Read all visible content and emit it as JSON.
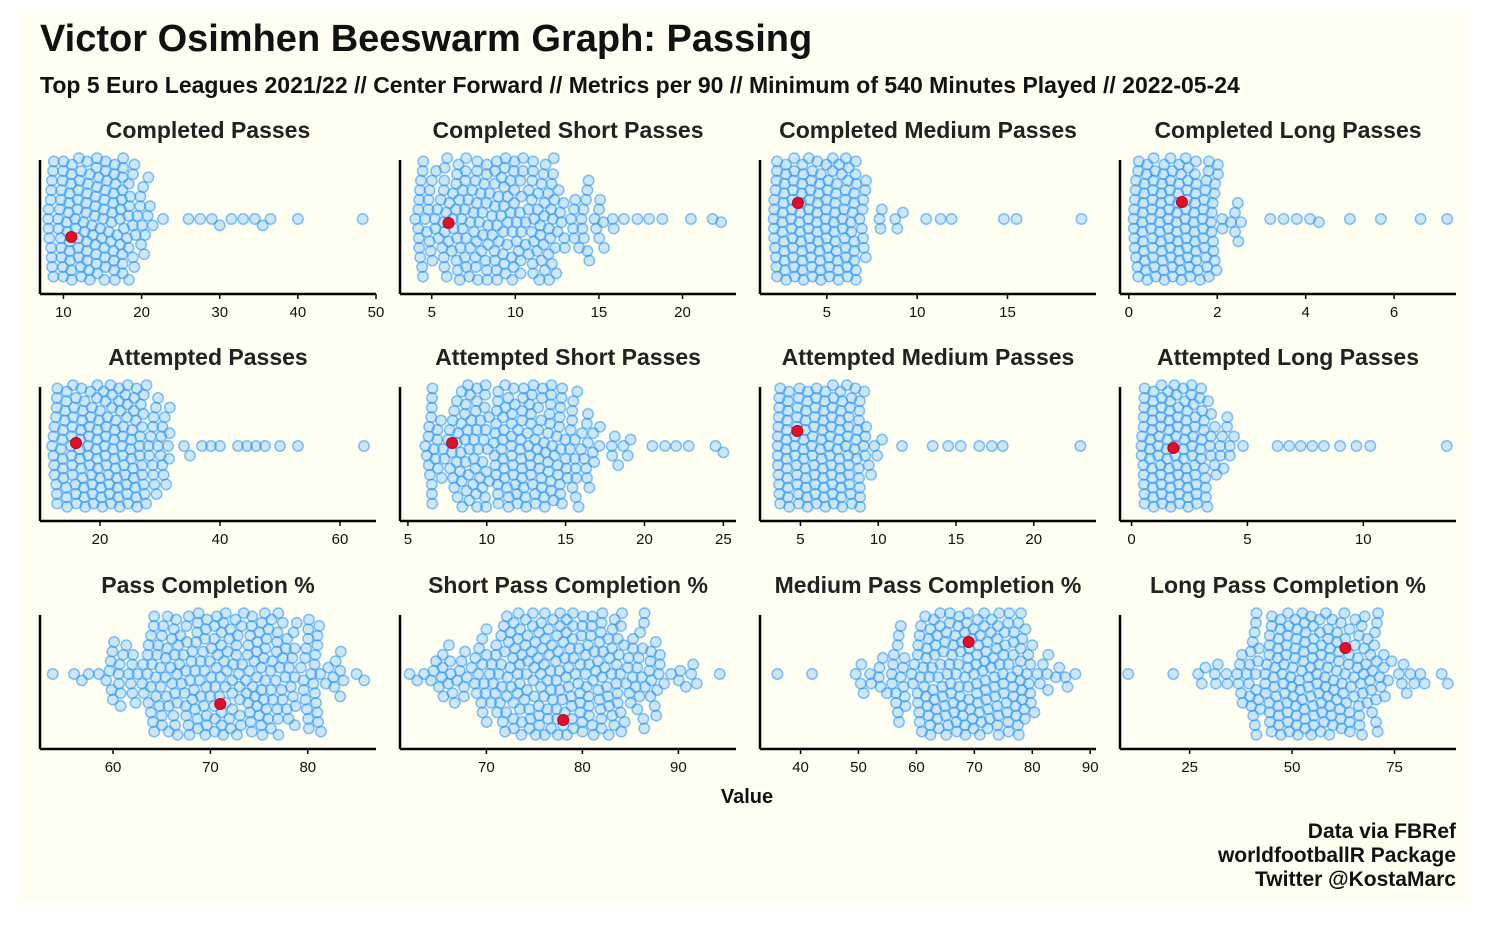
{
  "title": "Victor Osimhen Beeswarm Graph: Passing",
  "subtitle": "Top 5 Euro Leagues 2021/22 // Center Forward // Metrics per 90 // Minimum of 540 Minutes Played // 2022-05-24",
  "caption": [
    "Data via FBRef",
    "worldfootballR Package",
    "Twitter @KostaMarc"
  ],
  "colors": {
    "background": "#fefef1",
    "swarm": "#1e90ff",
    "highlight": "#e0102a"
  },
  "chart_data": {
    "type": "scatter",
    "subtype": "beeswarm",
    "xlabel": "Value",
    "ylabel": "",
    "grid": false,
    "highlight_player": "Victor Osimhen",
    "facets": [
      {
        "title": "Completed Passes",
        "xlim": [
          7,
          50
        ],
        "ticks": [
          10,
          20,
          30,
          40,
          50
        ],
        "highlight_value": 11,
        "peak": 14,
        "spread": 3.5,
        "min": 8,
        "max": 25,
        "outliers": [
          26,
          27.5,
          29,
          30,
          31.5,
          33,
          34.5,
          35.5,
          36.5,
          40,
          48.3
        ]
      },
      {
        "title": "Completed Short Passes",
        "xlim": [
          3.1,
          23.2
        ],
        "ticks": [
          5,
          10,
          15,
          20
        ],
        "highlight_value": 6,
        "peak": 9,
        "spread": 2.6,
        "min": 4,
        "max": 16,
        "outliers": [
          16.5,
          17.3,
          18,
          18.8,
          20.5,
          21.8,
          22.3
        ]
      },
      {
        "title": "Completed Medium Passes",
        "xlim": [
          1.3,
          19.9
        ],
        "ticks": [
          5,
          10,
          15
        ],
        "highlight_value": 3.4,
        "peak": 4.3,
        "spread": 1.5,
        "min": 2,
        "max": 10,
        "outliers": [
          10.5,
          11.3,
          11.9,
          14.8,
          15.5,
          19.1
        ]
      },
      {
        "title": "Completed Long Passes",
        "xlim": [
          -0.2,
          7.4
        ],
        "ticks": [
          0,
          2,
          4,
          6
        ],
        "highlight_value": 1.2,
        "peak": 1,
        "spread": 0.55,
        "min": 0.1,
        "max": 3,
        "outliers": [
          3.2,
          3.5,
          3.8,
          4.1,
          4.3,
          5,
          5.7,
          6.6,
          7.2
        ]
      },
      {
        "title": "Attempted Passes",
        "xlim": [
          10,
          66
        ],
        "ticks": [
          20,
          40,
          60
        ],
        "highlight_value": 16,
        "peak": 21,
        "spread": 4.5,
        "min": 12,
        "max": 33,
        "outliers": [
          34,
          35,
          37,
          38.5,
          40,
          43,
          44.5,
          46,
          47.5,
          50,
          53,
          64
        ]
      },
      {
        "title": "Attempted Short Passes",
        "xlim": [
          4.5,
          25.8
        ],
        "ticks": [
          5,
          10,
          15,
          20,
          25
        ],
        "highlight_value": 7.8,
        "peak": 11.5,
        "spread": 3,
        "min": 6,
        "max": 20,
        "outliers": [
          20.5,
          21.3,
          22,
          22.8,
          24.5,
          25
        ]
      },
      {
        "title": "Attempted Medium Passes",
        "xlim": [
          2.4,
          24
        ],
        "ticks": [
          5,
          10,
          15,
          20
        ],
        "highlight_value": 4.8,
        "peak": 6,
        "spread": 1.7,
        "min": 3.5,
        "max": 13,
        "outliers": [
          13.5,
          14.5,
          15.3,
          16.5,
          17.3,
          18,
          23
        ]
      },
      {
        "title": "Attempted Long Passes",
        "xlim": [
          -0.5,
          14
        ],
        "ticks": [
          0,
          5,
          10
        ],
        "highlight_value": 1.8,
        "peak": 1.8,
        "spread": 0.9,
        "min": 0.4,
        "max": 6,
        "outliers": [
          6.3,
          6.8,
          7.3,
          7.8,
          8.3,
          9,
          9.7,
          10.3,
          13.6
        ]
      },
      {
        "title": "Pass Completion %",
        "xlim": [
          52.5,
          87
        ],
        "ticks": [
          60,
          70,
          80
        ],
        "highlight_value": 71,
        "peak": 71,
        "spread": 6,
        "min": 58,
        "max": 84,
        "outliers": [
          53.8,
          56,
          56.8,
          57.5,
          85,
          85.8
        ]
      },
      {
        "title": "Short Pass Completion %",
        "xlim": [
          61,
          96
        ],
        "ticks": [
          70,
          80,
          90
        ],
        "highlight_value": 78,
        "peak": 77.5,
        "spread": 6,
        "min": 64,
        "max": 92,
        "outliers": [
          62,
          62.8,
          63.5,
          94.3
        ]
      },
      {
        "title": "Medium Pass Completion %",
        "xlim": [
          33,
          91
        ],
        "ticks": [
          40,
          50,
          60,
          70,
          80,
          90
        ],
        "highlight_value": 69,
        "peak": 70,
        "spread": 7.5,
        "min": 46,
        "max": 88,
        "outliers": [
          36,
          42,
          49.5,
          50.5,
          52,
          53.5
        ]
      },
      {
        "title": "Long Pass Completion %",
        "xlim": [
          8,
          90
        ],
        "ticks": [
          25,
          50,
          75
        ],
        "highlight_value": 63,
        "peak": 55,
        "spread": 10,
        "min": 25,
        "max": 85,
        "outliers": [
          10,
          21,
          86.5,
          88
        ]
      }
    ]
  }
}
